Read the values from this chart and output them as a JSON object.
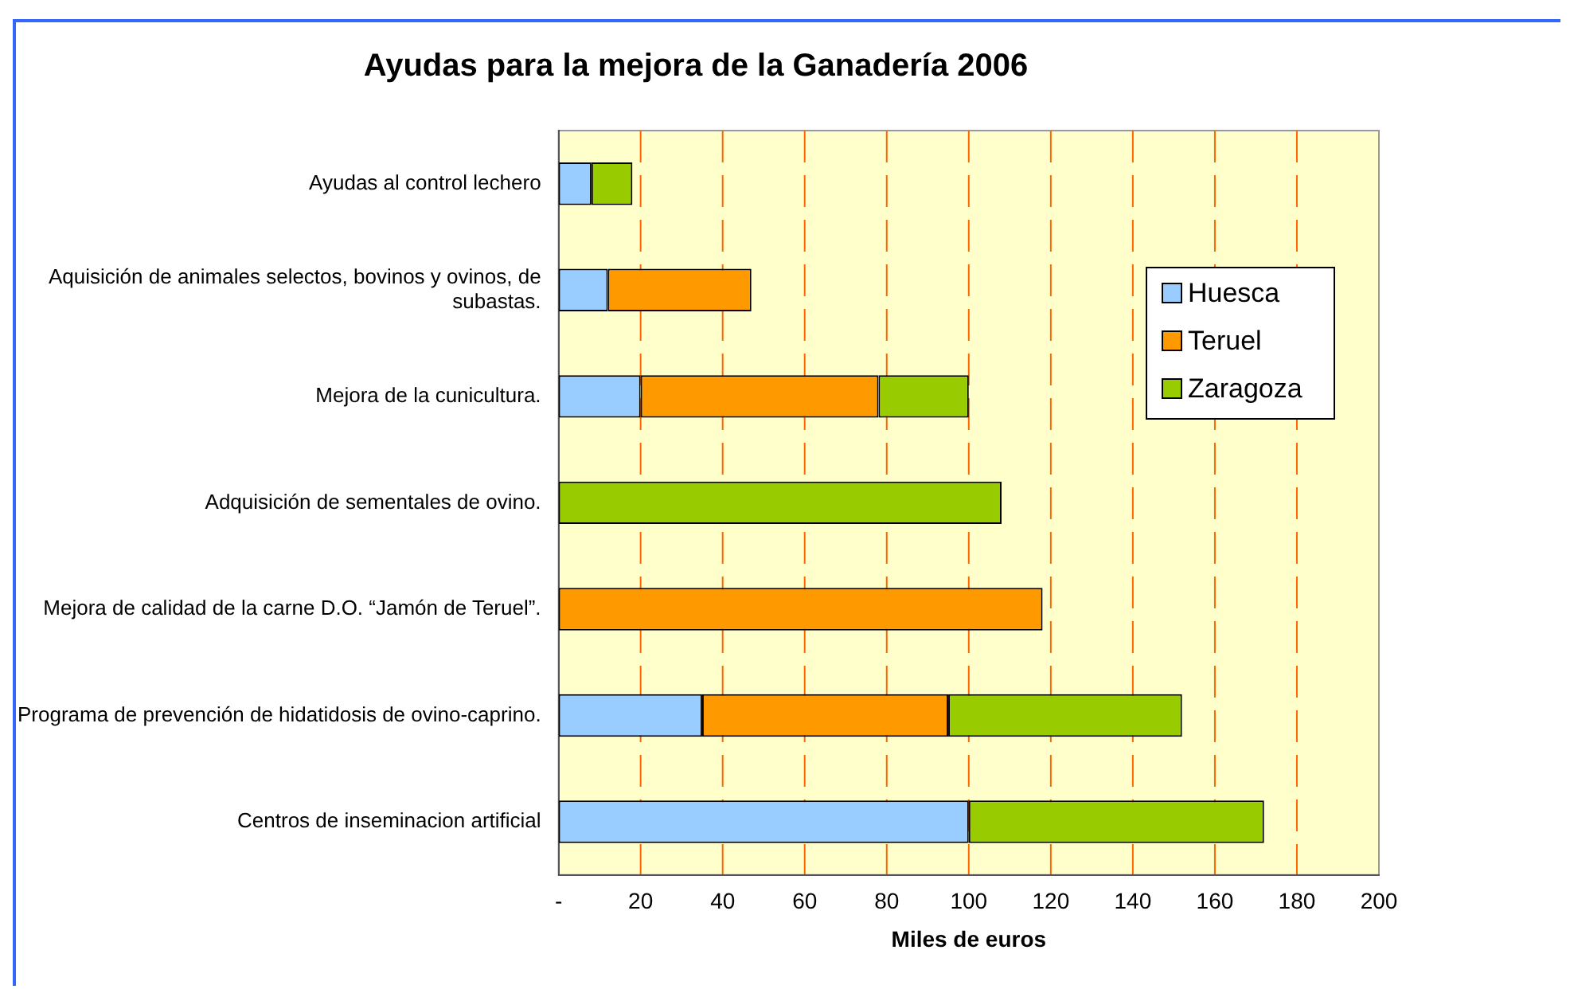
{
  "chart_data": {
    "type": "bar",
    "orientation": "horizontal",
    "stacked": true,
    "title": "Ayudas para la mejora de la Ganadería 2006",
    "xlabel": "Miles de euros",
    "categories": [
      "Ayudas al control lechero",
      "Aquisición de animales selectos, bovinos y ovinos, de subastas.",
      "Mejora de la cunicultura.",
      "Adquisición de sementales de ovino.",
      "Mejora de calidad de la carne D.O. “Jamón de Teruel”.",
      "Programa de prevención de hidatidosis de ovino-caprino.",
      "Centros de inseminacion artificial"
    ],
    "series": [
      {
        "name": "Huesca",
        "color": "#99ccff",
        "values": [
          8,
          12,
          20,
          null,
          null,
          35,
          100
        ]
      },
      {
        "name": "Teruel",
        "color": "#ff9900",
        "values": [
          null,
          35,
          58,
          null,
          118,
          60,
          null
        ]
      },
      {
        "name": "Zaragoza",
        "color": "#99cc00",
        "values": [
          10,
          null,
          22,
          108,
          null,
          57,
          72
        ]
      }
    ],
    "xlim": [
      0,
      200
    ],
    "xticks": [
      {
        "value": 0,
        "label": "-"
      },
      20,
      40,
      60,
      80,
      100,
      120,
      140,
      160,
      180,
      200
    ],
    "grid": "x",
    "legend": "right"
  }
}
